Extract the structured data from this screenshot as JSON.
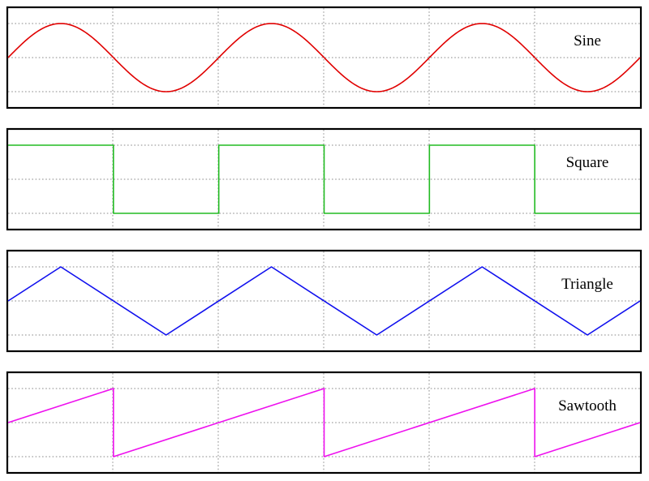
{
  "chart_data": [
    {
      "type": "line",
      "label": "Sine",
      "color": "#e00000",
      "grid": true,
      "xlim": [
        0,
        3
      ],
      "ylim": [
        -1.5,
        1.5
      ],
      "series": [
        {
          "x": [
            0,
            0.25,
            0.5,
            0.75,
            1,
            1.25,
            1.5,
            1.75,
            2,
            2.25,
            2.5,
            2.75,
            3
          ],
          "y": [
            0,
            1,
            0,
            -1,
            0,
            1,
            0,
            -1,
            0,
            1,
            0,
            -1,
            0
          ]
        }
      ]
    },
    {
      "type": "line",
      "label": "Square",
      "color": "#22bb22",
      "grid": true,
      "xlim": [
        0,
        3
      ],
      "ylim": [
        -1.5,
        1.5
      ],
      "series": [
        {
          "x": [
            0,
            0.5,
            0.5,
            1,
            1,
            1.5,
            1.5,
            2,
            2,
            2.5,
            2.5,
            3
          ],
          "y": [
            1,
            1,
            -1,
            -1,
            1,
            1,
            -1,
            -1,
            1,
            1,
            -1,
            -1
          ]
        }
      ]
    },
    {
      "type": "line",
      "label": "Triangle",
      "color": "#1010ee",
      "grid": true,
      "xlim": [
        0,
        3
      ],
      "ylim": [
        -1.5,
        1.5
      ],
      "series": [
        {
          "x": [
            0,
            0.25,
            0.75,
            1.25,
            1.75,
            2.25,
            2.75,
            3
          ],
          "y": [
            0,
            1,
            -1,
            1,
            -1,
            1,
            -1,
            0
          ]
        }
      ]
    },
    {
      "type": "line",
      "label": "Sawtooth",
      "color": "#ee10ee",
      "grid": true,
      "xlim": [
        0,
        3
      ],
      "ylim": [
        -1.5,
        1.5
      ],
      "series": [
        {
          "x": [
            0,
            0.5,
            0.5,
            1.5,
            1.5,
            2.5,
            2.5,
            3
          ],
          "y": [
            0,
            1,
            -1,
            1,
            -1,
            1,
            -1,
            0
          ]
        }
      ]
    }
  ]
}
